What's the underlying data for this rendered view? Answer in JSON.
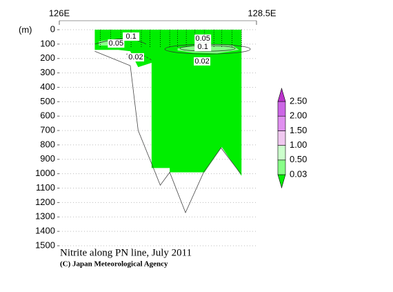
{
  "chart_data": {
    "type": "section",
    "title": "Nitrite along PN line, July 2011",
    "credit": "(C) Japan Meteorological Agency",
    "ylabel": "(m)",
    "xlim": [
      126,
      128.5
    ],
    "xticks": [
      {
        "value": 126,
        "label": "126E"
      },
      {
        "value": 128.5,
        "label": "128.5E"
      }
    ],
    "ylim": [
      0,
      1500
    ],
    "y_inverted": true,
    "yticks": [
      0,
      100,
      200,
      300,
      400,
      500,
      600,
      700,
      800,
      900,
      1000,
      1100,
      1200,
      1300,
      1400,
      1500
    ],
    "grid": true,
    "levels": [
      0.03,
      {
        "value": 0.5,
        "label": "0.50"
      },
      {
        "value": 1.0,
        "label": "1.00"
      },
      {
        "value": 1.5,
        "label": "1.50"
      },
      {
        "value": 2.0,
        "label": "2.00"
      },
      {
        "value": 2.5,
        "label": "2.50"
      }
    ],
    "colors": [
      "#00ee00",
      "#88ff88",
      "#ccffcc",
      "#f0c8f0",
      "#e090f0",
      "#cc66e6",
      "#bb33cc"
    ],
    "stations": [
      126.52,
      126.65,
      126.78,
      126.91,
      127.04,
      127.15,
      127.28,
      127.4,
      127.5,
      127.61,
      127.72,
      127.84,
      127.96,
      128.06,
      128.19,
      128.31
    ],
    "regions": [
      {
        "band": 0,
        "x": [
          126.45,
          128.31,
          128.31,
          128.06,
          127.84,
          127.4,
          127.4,
          127.17,
          127.17,
          127.0,
          126.9,
          126.75,
          126.45
        ],
        "depth": [
          0,
          0,
          1015,
          815,
          990,
          990,
          960,
          960,
          230,
          260,
          150,
          140,
          140
        ]
      },
      {
        "band": 1,
        "x": [
          127.5,
          127.7,
          127.95,
          128.2,
          128.28,
          128.0,
          127.7,
          127.5
        ],
        "depth": [
          130,
          110,
          100,
          110,
          140,
          165,
          160,
          145
        ]
      },
      {
        "band": 1,
        "x": [
          126.5,
          126.65,
          126.8,
          126.7,
          126.5
        ],
        "depth": [
          80,
          70,
          85,
          110,
          110
        ]
      }
    ],
    "bottom": {
      "x": [
        126.45,
        126.9,
        127.0,
        127.2,
        127.28,
        127.4,
        127.6,
        127.83,
        128.05,
        128.3
      ],
      "depth": [
        150,
        250,
        700,
        970,
        1080,
        990,
        1270,
        990,
        820,
        1000
      ]
    },
    "contour_labels": [
      {
        "value": 0.1,
        "x": 126.91,
        "depth": 48
      },
      {
        "value": 0.05,
        "x": 127.82,
        "depth": 62
      },
      {
        "value": 0.1,
        "x": 127.82,
        "depth": 120
      },
      {
        "value": 0.05,
        "x": 126.72,
        "depth": 96
      },
      {
        "value": 0.02,
        "x": 126.97,
        "depth": 192
      },
      {
        "value": 0.02,
        "x": 127.81,
        "depth": 220
      }
    ]
  }
}
